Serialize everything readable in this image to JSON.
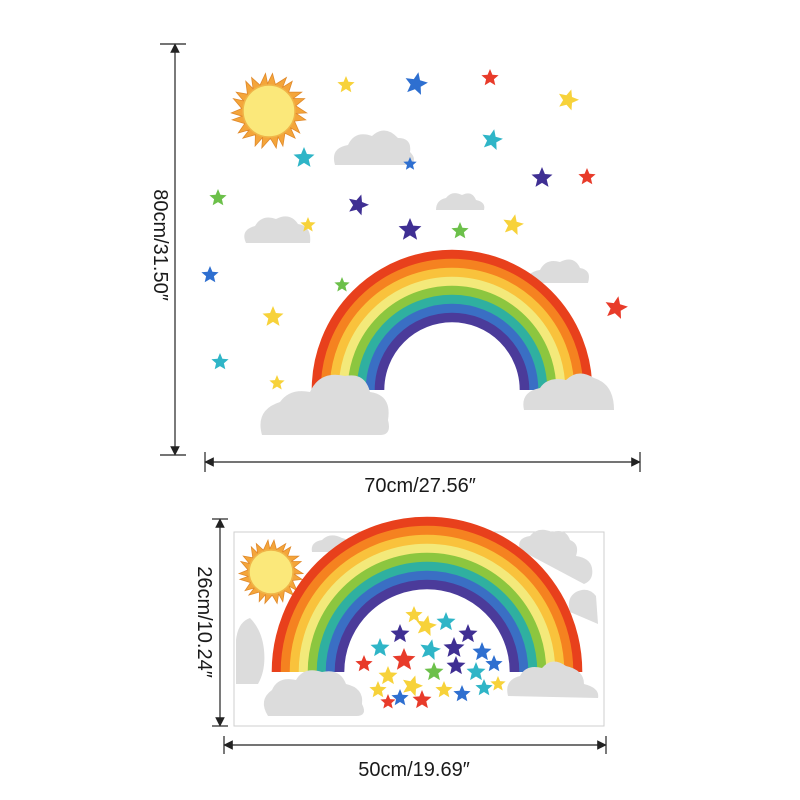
{
  "top_panel": {
    "height_label": "80cm/31.50″",
    "width_label": "70cm/27.56″"
  },
  "bottom_panel": {
    "height_label": "26cm/10.24″",
    "width_label": "50cm/19.69″"
  },
  "colors": {
    "rainbow_bands": [
      "#e8401c",
      "#f58220",
      "#f9c23c",
      "#f3e97a",
      "#8cc63f",
      "#2fb0a0",
      "#3a6fc4",
      "#4b3b9a"
    ],
    "cloud": "#dcdcdc",
    "sun_core": "#fbe87a",
    "sun_rays": "#f4a53a",
    "star_palette": [
      "#2e6fd0",
      "#e83b2a",
      "#f7d23a",
      "#2fb5c7",
      "#3f2f93",
      "#6cc04a"
    ],
    "dimension_line": "#222222",
    "sheet_border": "#cfcfcf"
  },
  "icons": [
    "sun-icon",
    "cloud-icon",
    "star-icon",
    "rainbow-icon"
  ]
}
